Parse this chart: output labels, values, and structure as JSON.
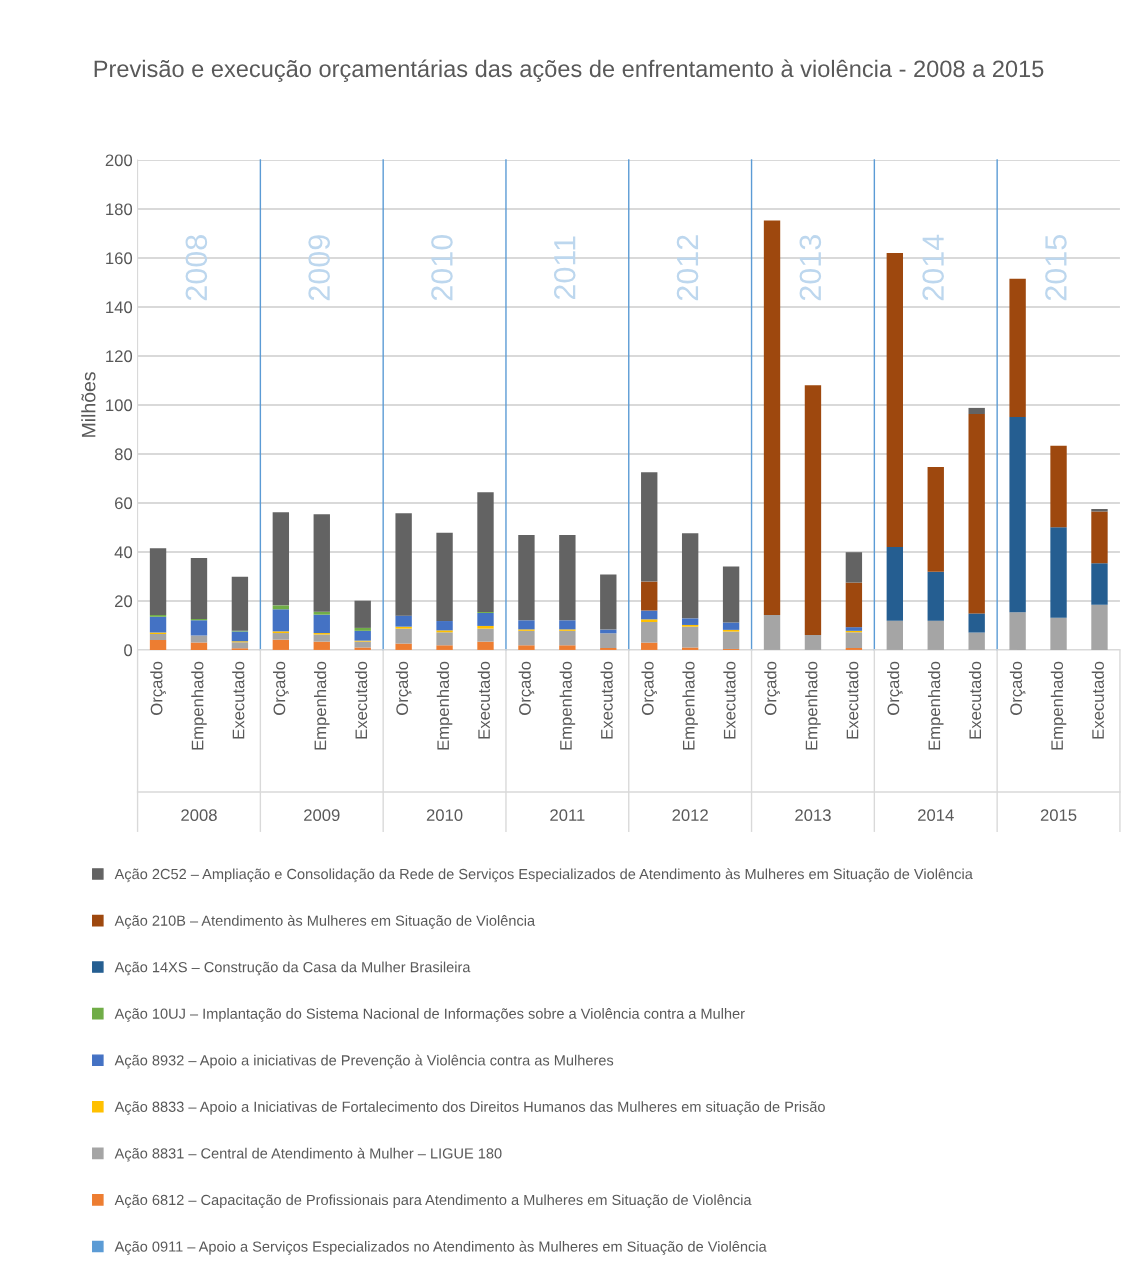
{
  "chart_data": {
    "type": "bar",
    "stacked": true,
    "title": "Previsão e execução orçamentárias das ações de enfrentamento à violência - 2008 a 2015",
    "ylabel": "Milhões",
    "categories": [
      "Orçado",
      "Empenhado",
      "Executado",
      "Orçado",
      "Empenhado",
      "Executado",
      "Orçado",
      "Empenhado",
      "Executado",
      "Orçado",
      "Empenhado",
      "Executado",
      "Orçado",
      "Empenhado",
      "Executado",
      "Orçado",
      "Empenhado",
      "Executado",
      "Orçado",
      "Empenhado",
      "Executado",
      "Orçado",
      "Empenhado",
      "Executado"
    ],
    "annotations": [
      "2008",
      "2009",
      "2010",
      "2011",
      "2012",
      "2013",
      "2014",
      "2015"
    ],
    "ylim": [
      0,
      200
    ],
    "yticks": [
      0,
      20,
      40,
      60,
      80,
      100,
      120,
      140,
      160,
      180,
      200
    ],
    "grid": "y",
    "legend": "bottom",
    "series": [
      {
        "name": "Ação 0911 – Apoio a Serviços Especializados no Atendimento às Mulheres em Situação de Violência",
        "color": "#5b9bd5",
        "values": [
          0,
          0,
          0,
          0,
          0,
          0,
          0,
          0,
          0,
          0,
          0,
          0,
          0,
          0,
          0,
          0,
          0,
          0,
          0,
          0,
          0,
          0,
          0,
          0
        ]
      },
      {
        "name": "Ação 6812 – Capacitação de Profissionais para Atendimento a Mulheres em Situação de Violência",
        "color": "#ed7d31",
        "values": [
          4.1,
          3.0,
          0.7,
          4.2,
          3.4,
          1.0,
          2.6,
          1.9,
          3.4,
          1.9,
          1.9,
          0.8,
          3.0,
          1.0,
          0.4,
          0,
          0,
          0.8,
          0,
          0,
          0,
          0,
          0,
          0
        ]
      },
      {
        "name": "Ação 8831 – Central de Atendimento à Mulher – LIGUE 180",
        "color": "#a5a5a5",
        "values": [
          2.4,
          2.9,
          2.4,
          2.7,
          2.9,
          2.4,
          6.1,
          5.3,
          5.3,
          5.9,
          5.9,
          6.0,
          8.4,
          8.5,
          7.1,
          14.3,
          6.1,
          6.4,
          11.9,
          11.9,
          7.1,
          15.4,
          13.1,
          18.4
        ]
      },
      {
        "name": "Ação 8833 – Apoio a Iniciativas de Fortalecimento dos Direitos Humanos das Mulheres em situação de Prisão",
        "color": "#ffc000",
        "values": [
          0.6,
          null,
          0.4,
          0.7,
          0.6,
          0.4,
          0.8,
          0.8,
          1.1,
          0.6,
          0.6,
          null,
          1.1,
          0.7,
          0.7,
          0,
          0,
          0.6,
          0,
          0,
          0,
          0,
          0,
          0
        ]
      },
      {
        "name": "Ação 8932 – Apoio a iniciativas de Prevenção à Violência contra as Mulheres",
        "color": "#4472c4",
        "values": [
          6.5,
          6.2,
          4.0,
          9.0,
          7.5,
          4.0,
          4.5,
          3.8,
          5.3,
          3.7,
          3.7,
          1.5,
          3.6,
          2.7,
          3.0,
          0,
          0,
          1.5,
          0,
          0,
          0,
          0,
          0,
          0
        ]
      },
      {
        "name": "Ação 10UJ – Implantação do Sistema Nacional de Informações sobre a Violência contra a Mulher",
        "color": "#70ad47",
        "values": [
          0.7,
          0.5,
          0.3,
          1.6,
          1.2,
          1.2,
          0,
          0,
          0.4,
          0,
          0,
          0,
          0,
          0,
          0,
          0,
          0,
          0,
          0,
          0,
          0,
          0,
          0,
          0
        ]
      },
      {
        "name": "Ação 14XS – Construção da Casa da Mulher Brasileira",
        "color": "#255e91",
        "values": [
          0,
          0,
          0,
          0,
          0,
          0,
          0,
          0,
          0,
          0,
          0,
          0,
          0,
          0,
          0,
          0,
          0,
          0,
          30.1,
          20.0,
          7.8,
          79.7,
          37.0,
          17.0
        ]
      },
      {
        "name": "Ação 210B – Atendimento às Mulheres em Situação de Violência",
        "color": "#9e480e",
        "values": [
          0,
          0,
          0,
          0,
          0,
          0,
          0,
          0,
          0,
          0,
          0,
          0,
          11.8,
          0,
          0,
          161.0,
          101.9,
          18.2,
          120.0,
          42.8,
          81.4,
          56.4,
          33.3,
          21.1
        ]
      },
      {
        "name": "Ação 2C52 – Ampliação e Consolidação da Rede de Serviços Especializados de Atendimento às Mulheres em Situação de Violência",
        "color": "#636363",
        "values": [
          27.2,
          24.9,
          22.1,
          38.0,
          39.8,
          11.1,
          41.8,
          36.0,
          48.9,
          34.8,
          34.8,
          22.5,
          44.6,
          34.7,
          22.9,
          0,
          0,
          12.4,
          0,
          0,
          2.5,
          0,
          0,
          1.0
        ]
      }
    ]
  }
}
